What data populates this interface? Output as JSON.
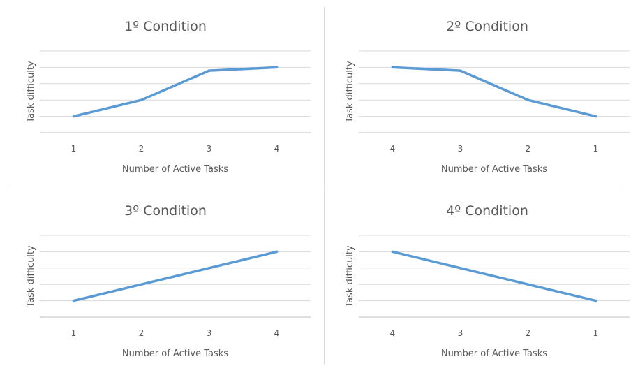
{
  "chart_data": [
    {
      "type": "line",
      "title": "1º Condition",
      "xlabel": "Number of Active Tasks",
      "ylabel": "Task difficulty",
      "categories": [
        "1",
        "2",
        "3",
        "4"
      ],
      "values": [
        1,
        2,
        3.8,
        4
      ],
      "ylim": [
        0,
        5
      ],
      "grid": true,
      "series_color": "#5b9bd5"
    },
    {
      "type": "line",
      "title": "2º Condition",
      "xlabel": "Number of Active Tasks",
      "ylabel": "Task difficulty",
      "categories": [
        "4",
        "3",
        "2",
        "1"
      ],
      "values": [
        4,
        3.8,
        2,
        1
      ],
      "ylim": [
        0,
        5
      ],
      "grid": true,
      "series_color": "#5b9bd5"
    },
    {
      "type": "line",
      "title": "3º Condition",
      "xlabel": "Number of Active Tasks",
      "ylabel": "Task difficulty",
      "categories": [
        "1",
        "2",
        "3",
        "4"
      ],
      "values": [
        1,
        2,
        3,
        4
      ],
      "ylim": [
        0,
        5
      ],
      "grid": true,
      "series_color": "#5b9bd5"
    },
    {
      "type": "line",
      "title": "4º Condition",
      "xlabel": "Number of Active Tasks",
      "ylabel": "Task difficulty",
      "categories": [
        "4",
        "3",
        "2",
        "1"
      ],
      "values": [
        4,
        3,
        2,
        1
      ],
      "ylim": [
        0,
        5
      ],
      "grid": true,
      "series_color": "#5b9bd5"
    }
  ]
}
